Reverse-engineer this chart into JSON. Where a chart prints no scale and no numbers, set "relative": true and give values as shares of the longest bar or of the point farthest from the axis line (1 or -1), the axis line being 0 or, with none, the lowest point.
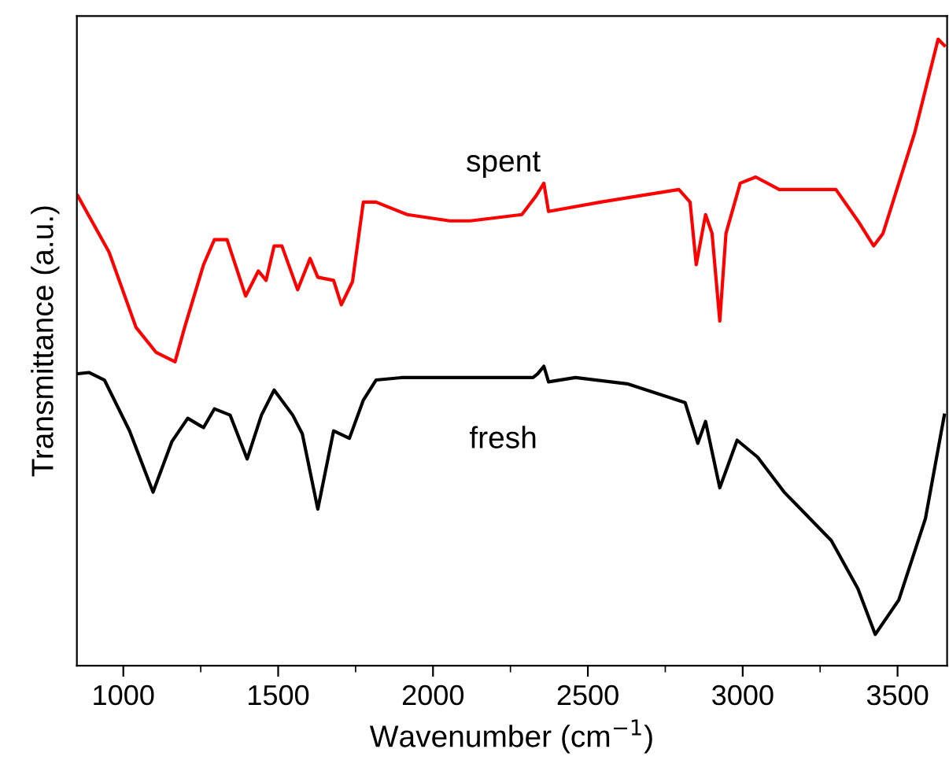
{
  "chart_data": {
    "type": "line",
    "relative": true,
    "xlabel": "Wavenumber (cm$^{−1}$)",
    "ylabel": "Transmittance (a.u.)",
    "xlim": [
      850,
      3660
    ],
    "xticks": [
      1000,
      {
        "value": 1250,
        "label": null
      },
      1500,
      {
        "value": 1750,
        "label": null
      },
      2000,
      {
        "value": 2250,
        "label": null
      },
      2500,
      {
        "value": 2750,
        "label": null
      },
      3000,
      {
        "value": 3250,
        "label": null
      },
      3500
    ],
    "series": [
      {
        "name": "spent",
        "color": "#ff0000",
        "x": [
          853,
          954,
          1041,
          1106,
          1167,
          1198,
          1259,
          1294,
          1335,
          1395,
          1436,
          1461,
          1487,
          1512,
          1563,
          1603,
          1628,
          1679,
          1704,
          1740,
          1775,
          1816,
          1917,
          2054,
          2120,
          2287,
          2333,
          2358,
          2373,
          2541,
          2794,
          2830,
          2850,
          2880,
          2901,
          2926,
          2946,
          2992,
          3042,
          3118,
          3301,
          3372,
          3423,
          3453,
          3555,
          3631,
          3651
        ],
        "values": [
          0.75,
          0.66,
          0.54,
          0.5,
          0.485,
          0.54,
          0.64,
          0.68,
          0.68,
          0.59,
          0.63,
          0.615,
          0.67,
          0.67,
          0.6,
          0.65,
          0.62,
          0.615,
          0.576,
          0.613,
          0.74,
          0.74,
          0.72,
          0.71,
          0.71,
          0.72,
          0.75,
          0.77,
          0.725,
          0.74,
          0.76,
          0.74,
          0.64,
          0.72,
          0.69,
          0.55,
          0.69,
          0.77,
          0.78,
          0.76,
          0.76,
          0.71,
          0.67,
          0.69,
          0.85,
          1.0,
          0.99
        ]
      },
      {
        "name": "fresh",
        "color": "#000000",
        "x": [
          853,
          889,
          939,
          1020,
          1096,
          1157,
          1208,
          1259,
          1294,
          1345,
          1400,
          1446,
          1487,
          1547,
          1578,
          1628,
          1679,
          1730,
          1775,
          1816,
          1902,
          2156,
          2323,
          2338,
          2358,
          2373,
          2460,
          2627,
          2814,
          2855,
          2880,
          2926,
          2982,
          3048,
          3134,
          3286,
          3372,
          3428,
          3504,
          3590,
          3651
        ],
        "values": [
          0.466,
          0.468,
          0.456,
          0.375,
          0.277,
          0.358,
          0.395,
          0.38,
          0.41,
          0.4,
          0.33,
          0.4,
          0.44,
          0.4,
          0.37,
          0.25,
          0.375,
          0.363,
          0.424,
          0.456,
          0.46,
          0.46,
          0.46,
          0.466,
          0.478,
          0.453,
          0.46,
          0.45,
          0.42,
          0.355,
          0.39,
          0.284,
          0.36,
          0.333,
          0.277,
          0.2,
          0.123,
          0.05,
          0.105,
          0.235,
          0.4
        ]
      }
    ],
    "grid": false,
    "marker": "none",
    "line_style": "solid",
    "tick_labels": "x"
  }
}
